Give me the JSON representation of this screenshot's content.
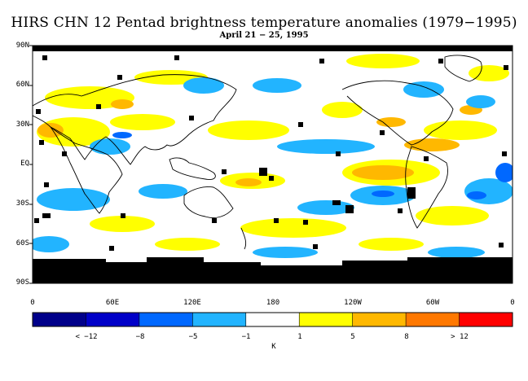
{
  "title": "HIRS CHN 12 Pentad brightness temperature anomalies (1979−1995)",
  "subtitle": "April 21 − 25, 1995",
  "lat_labels": [
    "90N",
    "60N",
    "30N",
    "EQ",
    "30S",
    "60S",
    "90S"
  ],
  "lon_labels": [
    "0",
    "60E",
    "120E",
    "180",
    "120W",
    "60W",
    "0"
  ],
  "colorbar": {
    "colors": [
      "#00008a",
      "#0000c8",
      "#0068ff",
      "#22b4ff",
      "#ffffff",
      "#ffff00",
      "#ffb800",
      "#ff7800",
      "#ff0000"
    ],
    "tick_labels": [
      "< −12",
      "−8",
      "−5",
      "−1",
      "1",
      "5",
      "8",
      "> 12"
    ],
    "unit": "K"
  },
  "map_colors": {
    "no_data": "#000000",
    "coastline": "#000000"
  }
}
